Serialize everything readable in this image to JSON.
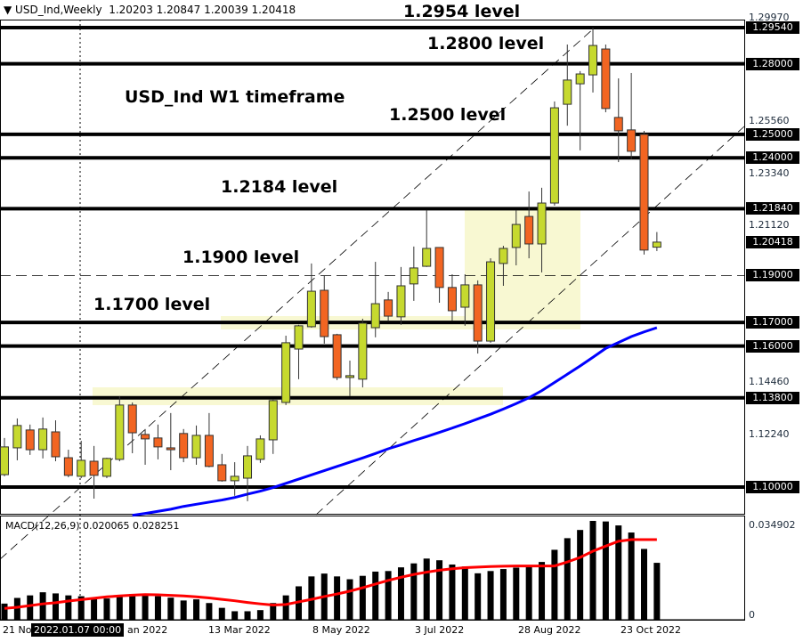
{
  "header": {
    "symbol": "USD_Ind,Weekly",
    "ohlc": "1.20203 1.20847 1.20039 1.20418",
    "menu_icon": "triangle-down-icon"
  },
  "annotations": [
    {
      "id": "1.2954",
      "text": "1.2954 level"
    },
    {
      "id": "1.2800",
      "text": "1.2800 level"
    },
    {
      "id": "tf",
      "text": "USD_Ind W1 timeframe"
    },
    {
      "id": "1.2500",
      "text": "1.2500 level"
    },
    {
      "id": "1.2184",
      "text": "1.2184 level"
    },
    {
      "id": "1.1900",
      "text": "1.1900 level"
    },
    {
      "id": "1.1700",
      "text": "1.1700 level"
    }
  ],
  "levels": [
    1.2954,
    1.28,
    1.25,
    1.24,
    1.2184,
    1.17,
    1.16,
    1.138,
    1.1
  ],
  "dashed_level": 1.19,
  "price_axis": {
    "ticks": [
      "1.29970",
      "1.25560",
      "1.23340",
      "1.21120",
      "1.14460",
      "1.12240"
    ],
    "level_labels": [
      "1.29540",
      "1.28000",
      "1.25000",
      "1.24000",
      "1.21840",
      "1.19000",
      "1.17000",
      "1.16000",
      "1.13800",
      "1.10000"
    ],
    "current_price": "1.20418"
  },
  "colors": {
    "bull": "#c6d92f",
    "bear": "#f26522",
    "ma": "#0000ff",
    "signal": "#ff0000",
    "zone": "#f8f8d2"
  },
  "candles": [
    [
      1.1053,
      1.1209,
      1.1046,
      1.1171
    ],
    [
      1.1167,
      1.1292,
      1.1114,
      1.1262
    ],
    [
      1.1243,
      1.1266,
      1.1137,
      1.1159
    ],
    [
      1.1159,
      1.1296,
      1.1122,
      1.1247
    ],
    [
      1.1235,
      1.1284,
      1.111,
      1.1129
    ],
    [
      1.1125,
      1.1159,
      1.1042,
      1.105
    ],
    [
      1.1046,
      1.1197,
      1.1038,
      1.1114
    ],
    [
      1.111,
      1.1175,
      1.0951,
      1.105
    ],
    [
      1.1046,
      1.1125,
      1.1038,
      1.1122
    ],
    [
      1.1118,
      1.1387,
      1.111,
      1.1349
    ],
    [
      1.1349,
      1.136,
      1.1144,
      1.1231
    ],
    [
      1.1224,
      1.1247,
      1.1095,
      1.1205
    ],
    [
      1.1209,
      1.1266,
      1.1118,
      1.1171
    ],
    [
      1.1167,
      1.1315,
      1.1072,
      1.1159
    ],
    [
      1.1228,
      1.1247,
      1.1106,
      1.1125
    ],
    [
      1.1125,
      1.1262,
      1.1095,
      1.122
    ],
    [
      1.122,
      1.1315,
      1.1084,
      1.1088
    ],
    [
      1.1095,
      1.1141,
      1.1023,
      1.1027
    ],
    [
      1.1027,
      1.1106,
      1.0963,
      1.1046
    ],
    [
      1.1038,
      1.1175,
      1.094,
      1.1133
    ],
    [
      1.1118,
      1.122,
      1.1103,
      1.1205
    ],
    [
      1.1201,
      1.1375,
      1.1141,
      1.1368
    ],
    [
      1.136,
      1.1644,
      1.1349,
      1.1614
    ],
    [
      1.1587,
      1.169,
      1.1459,
      1.1686
    ],
    [
      1.1682,
      1.1951,
      1.1678,
      1.1833
    ],
    [
      1.1837,
      1.1898,
      1.161,
      1.164
    ],
    [
      1.1648,
      1.1652,
      1.1455,
      1.1466
    ],
    [
      1.1466,
      1.1538,
      1.1387,
      1.1474
    ],
    [
      1.1459,
      1.1716,
      1.1424,
      1.1697
    ],
    [
      1.1678,
      1.1958,
      1.1637,
      1.178
    ],
    [
      1.1796,
      1.183,
      1.1705,
      1.1727
    ],
    [
      1.1724,
      1.1936,
      1.169,
      1.1856
    ],
    [
      1.1864,
      1.2023,
      1.1792,
      1.1932
    ],
    [
      1.1939,
      1.2178,
      1.1936,
      1.2015
    ],
    [
      1.2019,
      1.2019,
      1.1784,
      1.1849
    ],
    [
      1.1849,
      1.1905,
      1.1708,
      1.175
    ],
    [
      1.1765,
      1.1905,
      1.1686,
      1.186
    ],
    [
      1.186,
      1.1879,
      1.1568,
      1.1621
    ],
    [
      1.1621,
      1.1973,
      1.1614,
      1.1958
    ],
    [
      1.1951,
      1.2026,
      1.1856,
      1.2015
    ],
    [
      1.2019,
      1.2178,
      1.1943,
      1.2117
    ],
    [
      1.2151,
      1.2257,
      1.1973,
      1.2034
    ],
    [
      1.2034,
      1.2273,
      1.1913,
      1.2208
    ],
    [
      1.2208,
      1.264,
      1.2197,
      1.2613
    ],
    [
      1.2628,
      1.2882,
      1.2537,
      1.2731
    ],
    [
      1.2715,
      1.2769,
      1.2432,
      1.2757
    ],
    [
      1.2753,
      1.2954,
      1.2678,
      1.2878
    ],
    [
      1.2863,
      1.2882,
      1.2594,
      1.261
    ],
    [
      1.2572,
      1.2738,
      1.2382,
      1.2515
    ],
    [
      1.2519,
      1.2761,
      1.2394,
      1.2428
    ],
    [
      1.25,
      1.2515,
      1.1989,
      1.2008
    ],
    [
      1.20203,
      1.20847,
      1.20039,
      1.20418
    ]
  ],
  "ma": [
    null,
    null,
    null,
    null,
    null,
    null,
    null,
    null,
    null,
    null,
    1.088,
    1.0888,
    1.0897,
    1.0906,
    1.0918,
    1.0927,
    1.0936,
    1.0945,
    1.0956,
    1.097,
    1.0983,
    1.0998,
    1.1016,
    1.1034,
    1.1052,
    1.107,
    1.1088,
    1.1106,
    1.1124,
    1.1143,
    1.1163,
    1.118,
    1.1198,
    1.1215,
    1.1233,
    1.1251,
    1.127,
    1.129,
    1.131,
    1.1332,
    1.1355,
    1.138,
    1.141,
    1.1445,
    1.148,
    1.1515,
    1.1552,
    1.159,
    1.1615,
    1.164,
    1.166,
    1.1678
  ],
  "macd": {
    "label": "MACD(12,26,9) 0.020065 0.028251",
    "top_label": "0.034902",
    "zero_label": "0",
    "histogram": [
      0.0057,
      0.0077,
      0.0086,
      0.0097,
      0.0093,
      0.0086,
      0.0083,
      0.0077,
      0.0075,
      0.0088,
      0.0091,
      0.0089,
      0.0083,
      0.0078,
      0.0068,
      0.0072,
      0.0059,
      0.0042,
      0.003,
      0.003,
      0.0034,
      0.0059,
      0.0086,
      0.0118,
      0.0153,
      0.0163,
      0.0153,
      0.0143,
      0.0155,
      0.017,
      0.0172,
      0.0185,
      0.0199,
      0.0216,
      0.021,
      0.0195,
      0.0188,
      0.0164,
      0.0172,
      0.0179,
      0.0184,
      0.0188,
      0.0204,
      0.0247,
      0.0288,
      0.0317,
      0.0349,
      0.0347,
      0.0333,
      0.0308,
      0.025,
      0.0201
    ],
    "signal": [
      0.004,
      0.0044,
      0.005,
      0.0056,
      0.006,
      0.0066,
      0.0071,
      0.0076,
      0.0081,
      0.0084,
      0.0087,
      0.0089,
      0.0088,
      0.0086,
      0.0084,
      0.0081,
      0.0077,
      0.0072,
      0.0067,
      0.0061,
      0.0056,
      0.0052,
      0.0054,
      0.0063,
      0.0072,
      0.0082,
      0.0091,
      0.0101,
      0.0113,
      0.0126,
      0.0139,
      0.015,
      0.016,
      0.0168,
      0.0175,
      0.018,
      0.0184,
      0.0186,
      0.0188,
      0.0189,
      0.019,
      0.019,
      0.019,
      0.019,
      0.0204,
      0.022,
      0.0242,
      0.026,
      0.0277,
      0.0283,
      0.0283,
      0.0283
    ]
  },
  "time_axis": {
    "labels": [
      "21 No",
      "an 2022",
      "13 Mar 2022",
      "8 May 2022",
      "3 Jul 2022",
      "28 Aug 2022",
      "23 Oct 2022"
    ],
    "crosshair_date": "2022.01.07 00:00"
  }
}
